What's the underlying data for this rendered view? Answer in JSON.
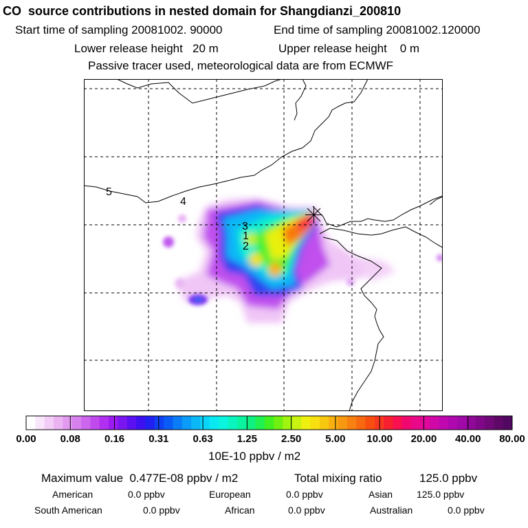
{
  "header": {
    "title": "CO  source contributions in nested domain for Shangdianzi_200810",
    "start_label": "Start time of sampling 20081002. 90000",
    "end_label": "End time of sampling 20081002.120000",
    "lower_label": "Lower release height   20 m",
    "upper_label": "Upper release height    0 m",
    "tracer_label": "Passive tracer used, meteorological data are from ECMWF"
  },
  "map": {
    "markers": [
      "5",
      "4",
      "3",
      "1",
      "2"
    ],
    "station_icon": "cross-star-icon"
  },
  "colorbar": {
    "ticks": [
      "0.00",
      "0.08",
      "0.16",
      "0.31",
      "0.63",
      "1.25",
      "2.50",
      "5.00",
      "10.00",
      "20.00",
      "40.00",
      "80.00"
    ],
    "unit": "10E-10 ppbv / m2",
    "colors": [
      "#ffffff",
      "#f9e6fb",
      "#f3ccf7",
      "#ecb3f3",
      "#e29af0",
      "#d880ee",
      "#cc66ee",
      "#c04aee",
      "#b02ff0",
      "#9a1cf0",
      "#7a16f0",
      "#5a10f0",
      "#3c10f0",
      "#2020f0",
      "#1040f4",
      "#0a5cf6",
      "#0a7cf8",
      "#0a9cf8",
      "#0ab8f8",
      "#0ad4f8",
      "#0ae8f2",
      "#0af4e0",
      "#0af4c0",
      "#0af4a0",
      "#10f080",
      "#20f050",
      "#40f020",
      "#70f010",
      "#a0f410",
      "#c8f410",
      "#f0f010",
      "#f8e010",
      "#f8c810",
      "#f8b010",
      "#f89810",
      "#f88010",
      "#f86810",
      "#f84e10",
      "#f83820",
      "#f82030",
      "#f81050",
      "#f00870",
      "#e80888",
      "#e0089a",
      "#d008a8",
      "#c008b0",
      "#b008b0",
      "#a008a8",
      "#900898",
      "#800888",
      "#700878",
      "#600868",
      "#500860"
    ]
  },
  "stats": {
    "max_label": "Maximum value  0.477E-08 ppbv / m2",
    "total_label": "Total mixing ratio",
    "total_value": "125.0 ppbv",
    "regions": [
      {
        "name": "American",
        "value": "0.0 ppbv"
      },
      {
        "name": "European",
        "value": "0.0 ppbv"
      },
      {
        "name": "Asian",
        "value": "125.0 ppbv"
      },
      {
        "name": "South American",
        "value": "0.0 ppbv"
      },
      {
        "name": "African",
        "value": "0.0 ppbv"
      },
      {
        "name": "Australian",
        "value": "0.0 ppbv"
      }
    ]
  }
}
